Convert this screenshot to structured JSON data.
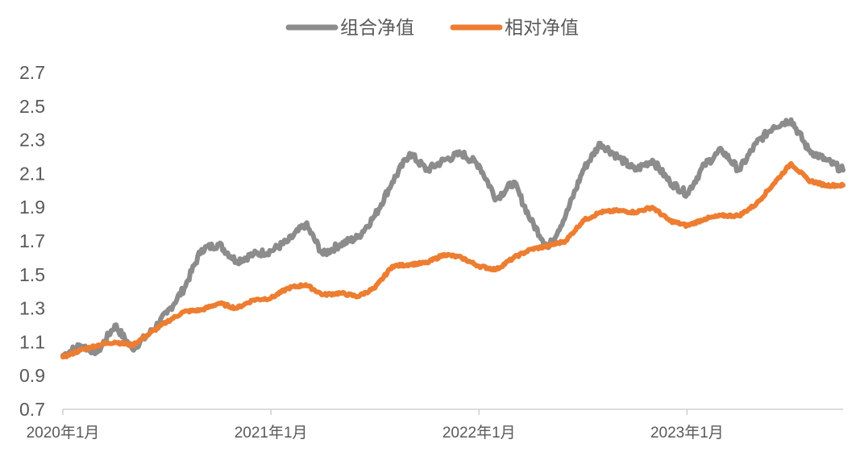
{
  "chart_data": {
    "type": "line",
    "title": "",
    "xlabel": "",
    "ylabel": "",
    "ylim": [
      0.7,
      2.7
    ],
    "yticks": [
      "0.7",
      "0.9",
      "1.1",
      "1.3",
      "1.5",
      "1.7",
      "1.9",
      "2.1",
      "2.3",
      "2.5",
      "2.7"
    ],
    "xticks": [
      "2020年1月",
      "2021年1月",
      "2022年1月",
      "2023年1月"
    ],
    "xtick_dates": [
      "2020-01",
      "2021-01",
      "2022-01",
      "2023-01"
    ],
    "xlim": [
      "2020-01",
      "2023-10"
    ],
    "grid": false,
    "legend_position": "top-center",
    "x": [
      "2020-01",
      "2020-02",
      "2020-03",
      "2020-04",
      "2020-05",
      "2020-06",
      "2020-07",
      "2020-08",
      "2020-09",
      "2020-10",
      "2020-11",
      "2020-12",
      "2021-01",
      "2021-02",
      "2021-03",
      "2021-04",
      "2021-05",
      "2021-06",
      "2021-07",
      "2021-08",
      "2021-09",
      "2021-10",
      "2021-11",
      "2021-12",
      "2022-01",
      "2022-02",
      "2022-03",
      "2022-04",
      "2022-05",
      "2022-06",
      "2022-07",
      "2022-08",
      "2022-09",
      "2022-10",
      "2022-11",
      "2022-12",
      "2023-01",
      "2023-02",
      "2023-03",
      "2023-04",
      "2023-05",
      "2023-06",
      "2023-07",
      "2023-08",
      "2023-09",
      "2023-10"
    ],
    "series": [
      {
        "name": "组合净值",
        "color": "#8c8c8c",
        "values": [
          1.02,
          1.08,
          1.04,
          1.2,
          1.06,
          1.15,
          1.27,
          1.42,
          1.65,
          1.68,
          1.58,
          1.62,
          1.64,
          1.7,
          1.8,
          1.62,
          1.68,
          1.72,
          1.85,
          2.05,
          2.22,
          2.12,
          2.18,
          2.22,
          2.15,
          1.95,
          2.05,
          1.82,
          1.66,
          1.85,
          2.12,
          2.28,
          2.2,
          2.12,
          2.18,
          2.05,
          1.98,
          2.15,
          2.24,
          2.12,
          2.28,
          2.38,
          2.42,
          2.24,
          2.18,
          2.12
        ]
      },
      {
        "name": "相对净值",
        "color": "#ed7d31",
        "values": [
          1.01,
          1.05,
          1.08,
          1.1,
          1.08,
          1.15,
          1.22,
          1.28,
          1.29,
          1.33,
          1.3,
          1.35,
          1.36,
          1.42,
          1.44,
          1.38,
          1.39,
          1.37,
          1.42,
          1.55,
          1.56,
          1.57,
          1.62,
          1.6,
          1.55,
          1.53,
          1.6,
          1.65,
          1.67,
          1.7,
          1.82,
          1.87,
          1.88,
          1.87,
          1.9,
          1.82,
          1.79,
          1.83,
          1.85,
          1.85,
          1.92,
          2.04,
          2.16,
          2.06,
          2.03,
          2.03
        ]
      }
    ]
  }
}
